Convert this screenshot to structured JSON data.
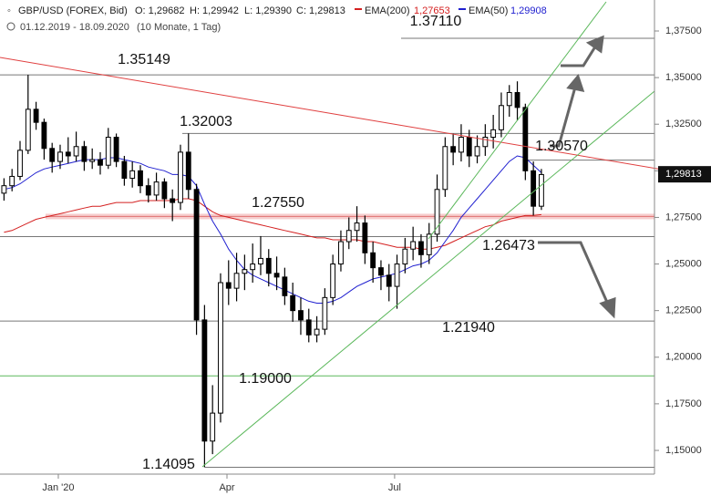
{
  "chart_data": {
    "type": "candlestick",
    "header": {
      "symbol": "GBP/USD (FOREX, Bid)",
      "open": "O: 1,29682",
      "high": "H: 1,29942",
      "low": "L: 1,29390",
      "close": "C: 1,29813",
      "range": "01.12.2019 - 18.09.2020",
      "period": "(10 Monate, 1 Tag)"
    },
    "open": [
      1.288,
      1.292,
      1.297,
      1.311,
      1.333,
      1.326,
      1.312,
      1.305,
      1.31,
      1.308,
      1.313,
      1.305,
      1.306,
      1.303,
      1.318,
      1.305,
      1.296,
      1.3,
      1.292,
      1.287,
      1.294,
      1.285,
      1.283,
      1.31,
      1.29,
      1.22,
      1.155,
      1.17,
      1.24,
      1.237,
      1.245,
      1.247,
      1.25,
      1.253,
      1.245,
      1.243,
      1.233,
      1.225,
      1.22,
      1.212,
      1.215,
      1.232,
      1.25,
      1.262,
      1.268,
      1.272,
      1.256,
      1.248,
      1.244,
      1.238,
      1.25,
      1.258,
      1.262,
      1.255,
      1.266,
      1.29,
      1.313,
      1.31,
      1.318,
      1.308,
      1.313,
      1.318,
      1.322,
      1.335,
      1.342,
      1.334,
      1.3,
      1.281
    ],
    "high": [
      1.296,
      1.301,
      1.316,
      1.3515,
      1.337,
      1.328,
      1.315,
      1.314,
      1.318,
      1.321,
      1.316,
      1.312,
      1.31,
      1.323,
      1.32,
      1.308,
      1.305,
      1.303,
      1.296,
      1.299,
      1.296,
      1.29,
      1.314,
      1.32003,
      1.293,
      1.228,
      1.185,
      1.245,
      1.252,
      1.256,
      1.255,
      1.261,
      1.265,
      1.258,
      1.254,
      1.248,
      1.24,
      1.232,
      1.226,
      1.222,
      1.237,
      1.255,
      1.268,
      1.275,
      1.281,
      1.276,
      1.262,
      1.252,
      1.25,
      1.255,
      1.264,
      1.27,
      1.266,
      1.272,
      1.298,
      1.318,
      1.32,
      1.325,
      1.322,
      1.319,
      1.325,
      1.33,
      1.342,
      1.346,
      1.348,
      1.336,
      1.305,
      1.301
    ],
    "low": [
      1.284,
      1.289,
      1.295,
      1.309,
      1.322,
      1.306,
      1.299,
      1.301,
      1.304,
      1.305,
      1.3,
      1.301,
      1.298,
      1.301,
      1.302,
      1.292,
      1.291,
      1.288,
      1.283,
      1.284,
      1.28,
      1.273,
      1.279,
      1.285,
      1.212,
      1.14095,
      1.148,
      1.165,
      1.228,
      1.23,
      1.236,
      1.24,
      1.244,
      1.238,
      1.236,
      1.228,
      1.219,
      1.212,
      1.208,
      1.208,
      1.212,
      1.228,
      1.246,
      1.258,
      1.262,
      1.25,
      1.24,
      1.236,
      1.23,
      1.226,
      1.245,
      1.252,
      1.248,
      1.25,
      1.262,
      1.286,
      1.303,
      1.305,
      1.302,
      1.304,
      1.308,
      1.312,
      1.318,
      1.329,
      1.327,
      1.295,
      1.276,
      1.279
    ],
    "close": [
      1.292,
      1.297,
      1.311,
      1.333,
      1.326,
      1.312,
      1.305,
      1.31,
      1.308,
      1.313,
      1.305,
      1.306,
      1.303,
      1.318,
      1.305,
      1.296,
      1.3,
      1.292,
      1.287,
      1.294,
      1.285,
      1.283,
      1.31,
      1.29,
      1.22,
      1.155,
      1.17,
      1.24,
      1.237,
      1.245,
      1.247,
      1.25,
      1.253,
      1.245,
      1.243,
      1.233,
      1.225,
      1.22,
      1.212,
      1.215,
      1.232,
      1.25,
      1.262,
      1.268,
      1.272,
      1.256,
      1.248,
      1.244,
      1.238,
      1.25,
      1.258,
      1.262,
      1.255,
      1.266,
      1.29,
      1.313,
      1.31,
      1.318,
      1.308,
      1.313,
      1.318,
      1.322,
      1.335,
      1.342,
      1.334,
      1.3,
      1.281,
      1.298
    ],
    "series": [
      {
        "name": "EMA(200)",
        "label": "1,27653",
        "color": "#d42020",
        "values": [
          1.267,
          1.268,
          1.27,
          1.272,
          1.274,
          1.275,
          1.276,
          1.277,
          1.278,
          1.279,
          1.28,
          1.281,
          1.281,
          1.282,
          1.283,
          1.283,
          1.283,
          1.284,
          1.284,
          1.284,
          1.284,
          1.284,
          1.285,
          1.285,
          1.284,
          1.281,
          1.278,
          1.276,
          1.275,
          1.274,
          1.273,
          1.272,
          1.271,
          1.27,
          1.269,
          1.268,
          1.267,
          1.266,
          1.265,
          1.264,
          1.264,
          1.263,
          1.263,
          1.263,
          1.263,
          1.262,
          1.262,
          1.261,
          1.26,
          1.259,
          1.259,
          1.259,
          1.258,
          1.258,
          1.259,
          1.26,
          1.262,
          1.264,
          1.266,
          1.268,
          1.27,
          1.271,
          1.273,
          1.274,
          1.275,
          1.276,
          1.276,
          1.2765
        ]
      },
      {
        "name": "EMA(50)",
        "label": "1,29908",
        "color": "#2020d0",
        "values": [
          1.29,
          1.291,
          1.293,
          1.296,
          1.299,
          1.301,
          1.302,
          1.303,
          1.304,
          1.305,
          1.306,
          1.306,
          1.306,
          1.307,
          1.307,
          1.306,
          1.305,
          1.304,
          1.302,
          1.301,
          1.3,
          1.298,
          1.298,
          1.297,
          1.292,
          1.282,
          1.273,
          1.266,
          1.258,
          1.252,
          1.247,
          1.244,
          1.242,
          1.24,
          1.238,
          1.236,
          1.234,
          1.232,
          1.23,
          1.229,
          1.229,
          1.23,
          1.232,
          1.235,
          1.238,
          1.24,
          1.242,
          1.243,
          1.244,
          1.245,
          1.247,
          1.249,
          1.25,
          1.252,
          1.256,
          1.262,
          1.268,
          1.275,
          1.28,
          1.285,
          1.29,
          1.295,
          1.3,
          1.305,
          1.308,
          1.307,
          1.303,
          1.299
        ]
      }
    ],
    "levels": [
      {
        "value": 1.3711,
        "label": "1.37110"
      },
      {
        "value": 1.35149,
        "label": "1.35149"
      },
      {
        "value": 1.32003,
        "label": "1.32003"
      },
      {
        "value": 1.3057,
        "label": "1.30570"
      },
      {
        "value": 1.2755,
        "label": "1.27550"
      },
      {
        "value": 1.26473,
        "label": "1.26473"
      },
      {
        "value": 1.2194,
        "label": "1.21940"
      },
      {
        "value": 1.19,
        "label": "1.19000"
      },
      {
        "value": 1.14095,
        "label": "1.14095"
      }
    ],
    "last_price": {
      "value": 1.29813,
      "label": "1,29813"
    },
    "xlim": [
      0,
      81.6
    ],
    "xticks": [
      {
        "value": 7.27,
        "label": "Jan '20"
      },
      {
        "value": 28.3,
        "label": "Apr"
      },
      {
        "value": 49.2,
        "label": "Jul"
      }
    ],
    "ylim": [
      1.13728,
      1.39163
    ],
    "yticks": [
      {
        "value": 1.15,
        "label": "1,15000"
      },
      {
        "value": 1.175,
        "label": "1,17500"
      },
      {
        "value": 1.2,
        "label": "1,20000"
      },
      {
        "value": 1.225,
        "label": "1,22500"
      },
      {
        "value": 1.25,
        "label": "1,25000"
      },
      {
        "value": 1.275,
        "label": "1,27500"
      },
      {
        "value": 1.3,
        "label": "1,30000"
      },
      {
        "value": 1.325,
        "label": "1,32500"
      },
      {
        "value": 1.35,
        "label": "1,35000"
      },
      {
        "value": 1.375,
        "label": "1,37500"
      }
    ]
  }
}
